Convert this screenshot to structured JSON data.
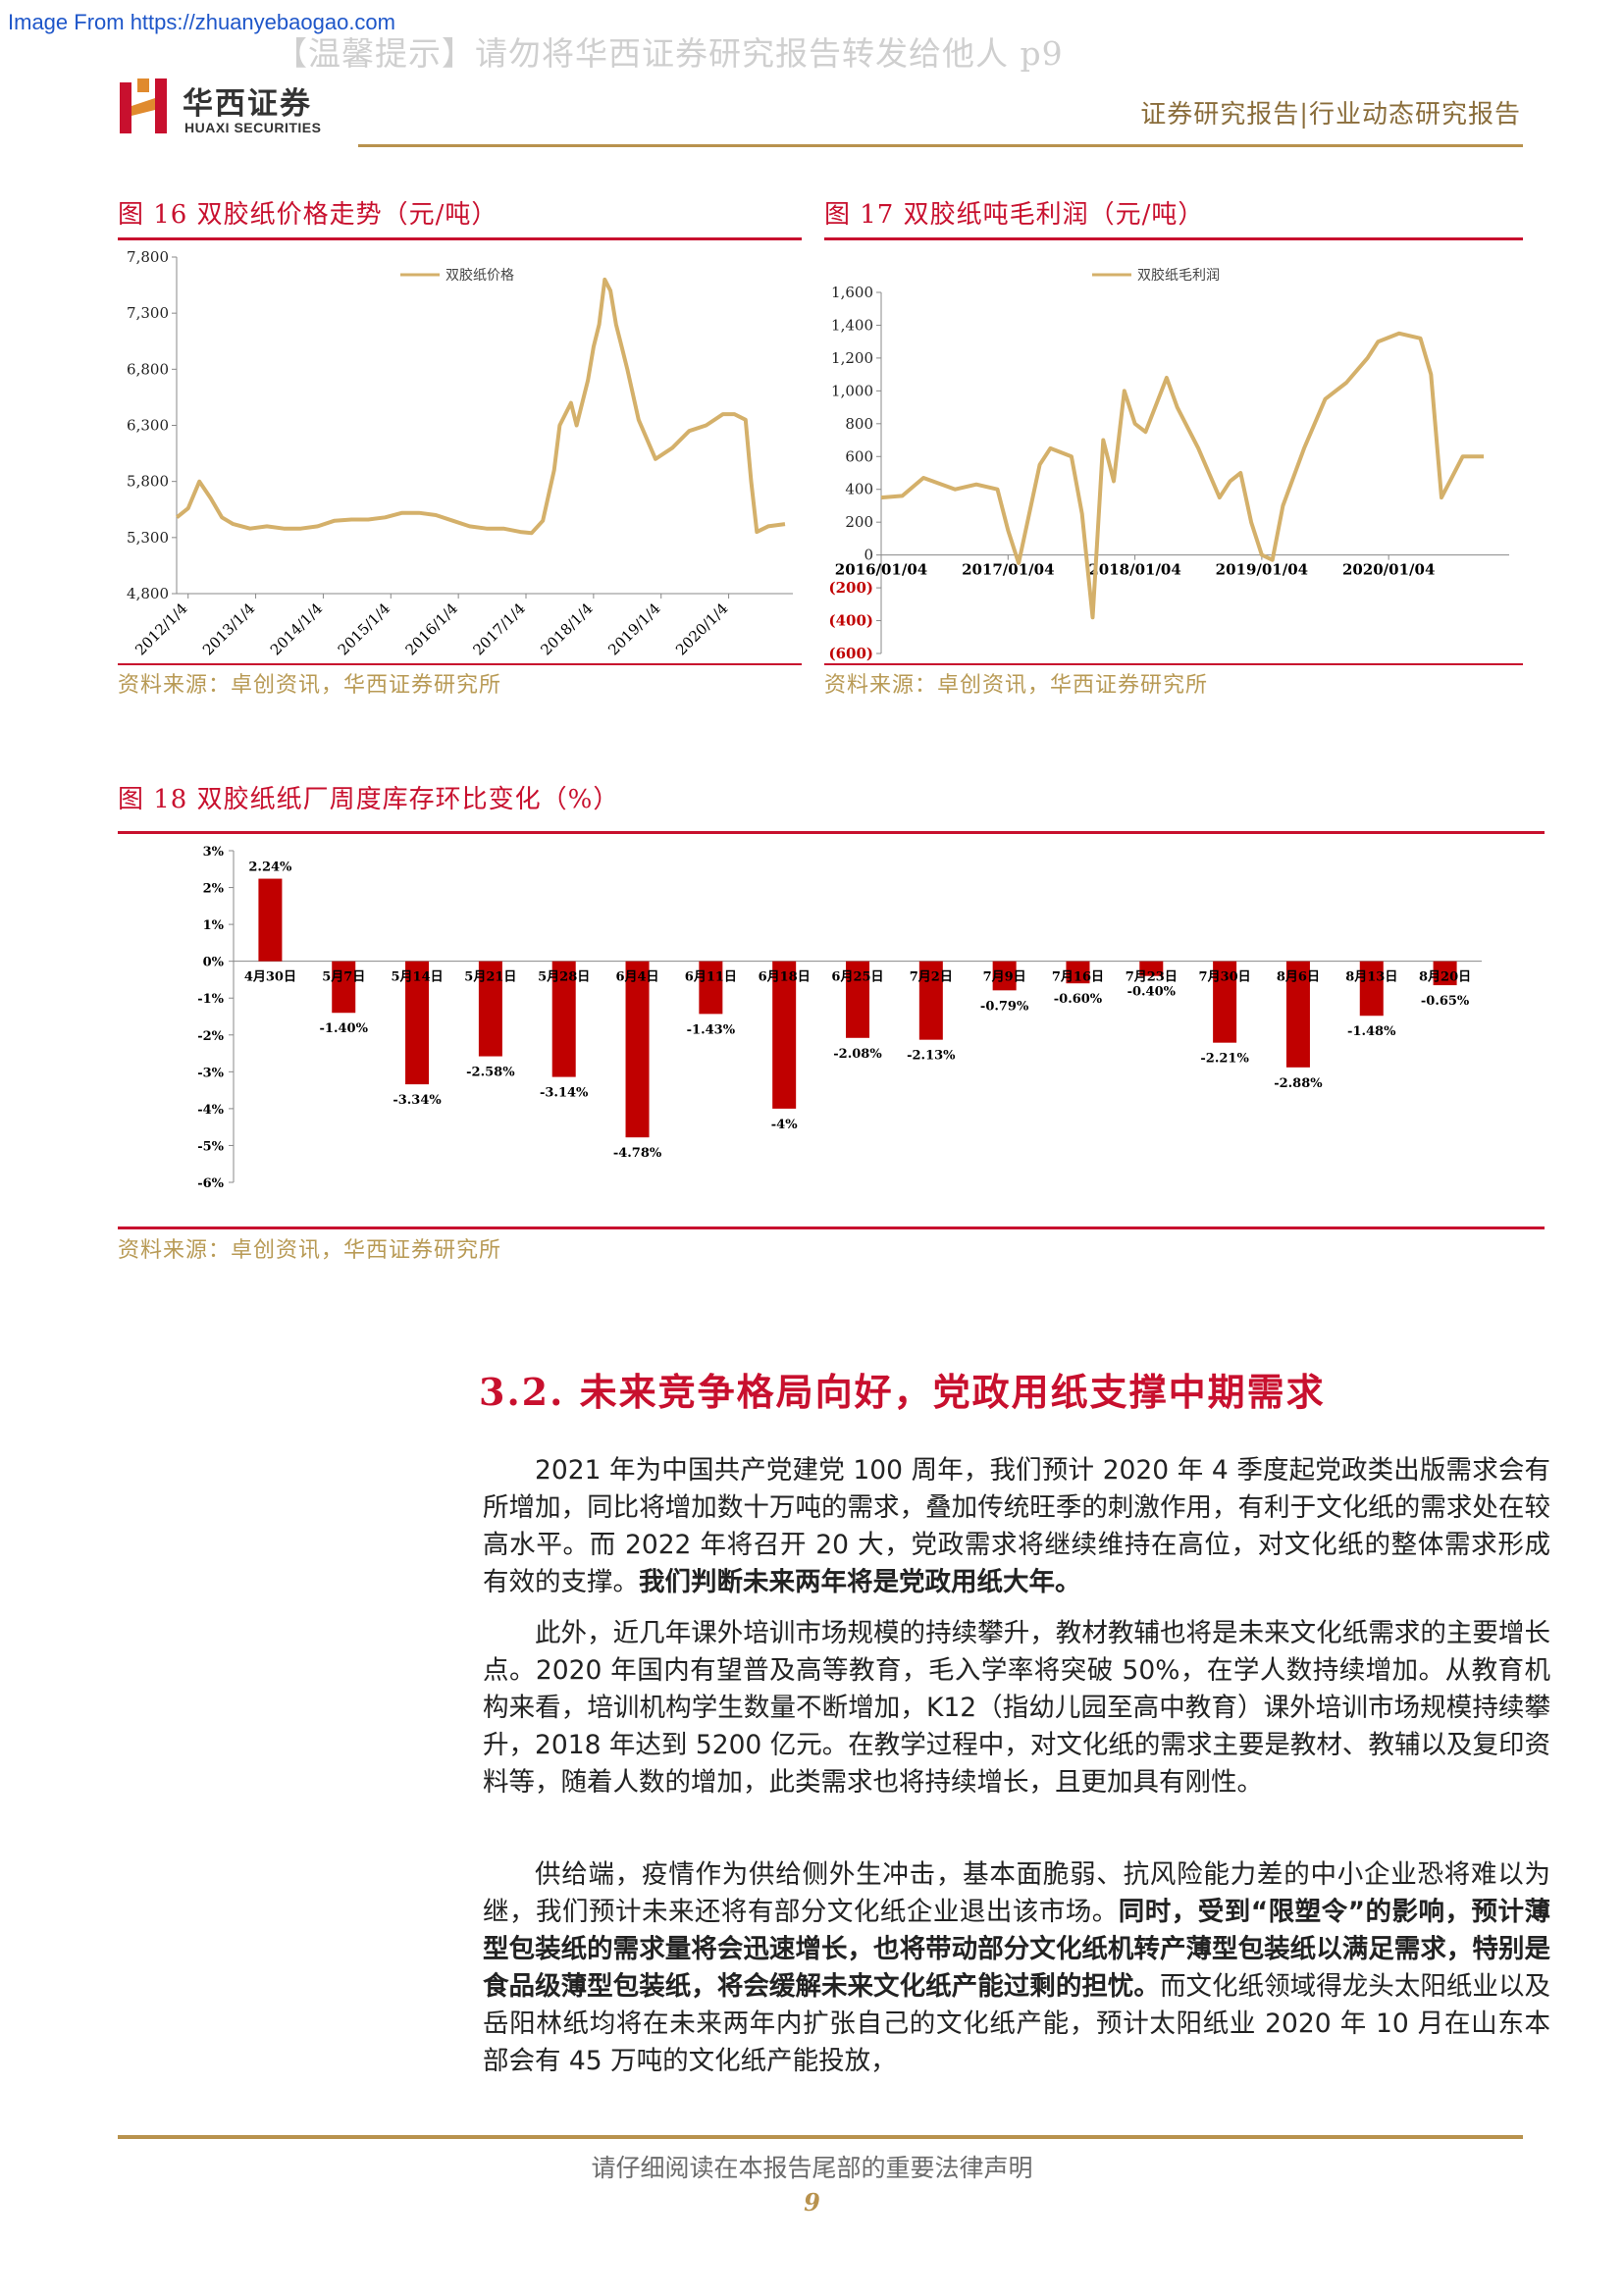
{
  "source_url": "Image From https://zhuanyebaogao.com",
  "warning": "【温馨提示】请勿将华西证券研究报告转发给他人 p9",
  "logo": {
    "cn": "华西证券",
    "en": "HUAXI SECURITIES",
    "mark": "H"
  },
  "report_type": "证券研究报告|行业动态研究报告",
  "figures": {
    "fig16": {
      "title": "图 16    双胶纸价格走势（元/吨）",
      "source": "资料来源：卓创资讯，华西证券研究所"
    },
    "fig17": {
      "title": "图 17    双胶纸吨毛利润（元/吨）",
      "source": "资料来源：卓创资讯，华西证券研究所"
    },
    "fig18": {
      "title": "图 18    双胶纸纸厂周度库存环比变化（%）",
      "source": "资料来源：卓创资讯，华西证券研究所"
    }
  },
  "chart_data": [
    {
      "id": "fig16",
      "type": "line",
      "series": [
        {
          "name": "双胶纸价格",
          "color": "#d4b06a",
          "x": [
            "2011/11",
            "2012/1",
            "2012/3",
            "2012/5",
            "2012/7",
            "2012/9",
            "2012/12",
            "2013/3",
            "2013/6",
            "2013/9",
            "2013/12",
            "2014/3",
            "2014/6",
            "2014/9",
            "2014/12",
            "2015/3",
            "2015/6",
            "2015/9",
            "2015/12",
            "2016/3",
            "2016/6",
            "2016/9",
            "2016/12",
            "2017/2",
            "2017/4",
            "2017/6",
            "2017/7",
            "2017/9",
            "2017/10",
            "2017/12",
            "2018/1",
            "2018/2",
            "2018/3",
            "2018/4",
            "2018/5",
            "2018/6",
            "2018/7",
            "2018/9",
            "2018/12",
            "2019/3",
            "2019/6",
            "2019/9",
            "2019/12",
            "2020/2",
            "2020/4",
            "2020/5",
            "2020/6",
            "2020/8",
            "2020/11"
          ],
          "values": [
            5480,
            5560,
            5800,
            5650,
            5480,
            5420,
            5380,
            5400,
            5380,
            5380,
            5400,
            5450,
            5460,
            5460,
            5480,
            5520,
            5520,
            5500,
            5450,
            5400,
            5380,
            5380,
            5350,
            5340,
            5450,
            5900,
            6300,
            6500,
            6300,
            6700,
            7000,
            7200,
            7600,
            7500,
            7200,
            7000,
            6800,
            6350,
            6000,
            6100,
            6250,
            6300,
            6400,
            6400,
            6350,
            5800,
            5350,
            5400,
            5420
          ]
        }
      ],
      "yticks": [
        "7,800",
        "7,300",
        "6,800",
        "6,300",
        "5,800",
        "5,300",
        "4,800"
      ],
      "ylim": [
        4800,
        7800
      ],
      "xticks": [
        "2012/1/4",
        "2013/1/4",
        "2014/1/4",
        "2015/1/4",
        "2016/1/4",
        "2017/1/4",
        "2018/1/4",
        "2019/1/4",
        "2020/1/4"
      ],
      "legend": "top-center"
    },
    {
      "id": "fig17",
      "type": "line",
      "series": [
        {
          "name": "双胶纸毛利润",
          "color": "#d4b06a",
          "x": [
            "2016/01",
            "2016/03",
            "2016/05",
            "2016/08",
            "2016/10",
            "2016/12",
            "2017/01",
            "2017/02",
            "2017/04",
            "2017/05",
            "2017/07",
            "2017/08",
            "2017/09",
            "2017/10",
            "2017/11",
            "2017/12",
            "2018/01",
            "2018/02",
            "2018/04",
            "2018/05",
            "2018/07",
            "2018/09",
            "2018/10",
            "2018/11",
            "2018/12",
            "2019/01",
            "2019/02",
            "2019/03",
            "2019/05",
            "2019/07",
            "2019/09",
            "2019/11",
            "2019/12",
            "2020/02",
            "2020/04",
            "2020/05",
            "2020/06",
            "2020/08",
            "2020/10"
          ],
          "values": [
            350,
            360,
            470,
            400,
            430,
            400,
            150,
            -50,
            550,
            650,
            600,
            250,
            -380,
            700,
            450,
            1000,
            800,
            750,
            1080,
            900,
            650,
            350,
            450,
            500,
            200,
            0,
            -30,
            300,
            650,
            950,
            1050,
            1200,
            1300,
            1350,
            1320,
            1100,
            350,
            600,
            600
          ]
        }
      ],
      "yticks": [
        "1,600",
        "1,400",
        "1,200",
        "1,000",
        "800",
        "600",
        "400",
        "200",
        "0",
        "(200)",
        "(400)",
        "(600)"
      ],
      "ylim": [
        -600,
        1600
      ],
      "xticks": [
        "2016/01/04",
        "2017/01/04",
        "2018/01/04",
        "2019/01/04",
        "2020/01/04"
      ],
      "legend": "top-center"
    },
    {
      "id": "fig18",
      "type": "bar",
      "categories": [
        "4月30日",
        "5月7日",
        "5月14日",
        "5月21日",
        "5月28日",
        "6月4日",
        "6月11日",
        "6月18日",
        "6月25日",
        "7月2日",
        "7月9日",
        "7月16日",
        "7月23日",
        "7月30日",
        "8月6日",
        "8月13日",
        "8月20日"
      ],
      "values": [
        2.24,
        -1.4,
        -3.34,
        -2.58,
        -3.14,
        -4.78,
        -1.43,
        -4.0,
        -2.08,
        -2.13,
        -0.79,
        -0.6,
        -0.4,
        -2.21,
        -2.88,
        -1.48,
        -0.65
      ],
      "value_labels": [
        "2.24%",
        "-1.40%",
        "-3.34%",
        "-2.58%",
        "-3.14%",
        "-4.78%",
        "-1.43%",
        "-4%",
        "-2.08%",
        "-2.13%",
        "-0.79%",
        "-0.60%",
        "-0.40%",
        "-2.21%",
        "-2.88%",
        "-1.48%",
        "-0.65%"
      ],
      "yticks": [
        "3%",
        "2%",
        "1%",
        "0%",
        "-1%",
        "-2%",
        "-3%",
        "-4%",
        "-5%",
        "-6%"
      ],
      "ylim": [
        -6,
        3
      ],
      "bar_color": "#c00000"
    }
  ],
  "section": {
    "heading": "3.2. 未来竞争格局向好，党政用纸支撑中期需求"
  },
  "paragraphs": [
    {
      "plain": "2021 年为中国共产党建党 100 周年，我们预计 2020 年 4 季度起党政类出版需求会有所增加，同比将增加数十万吨的需求，叠加传统旺季的刺激作用，有利于文化纸的需求处在较高水平。而 2022 年将召开 20 大，党政需求将继续维持在高位，对文化纸的整体需求形成有效的支撑。",
      "bold": "我们判断未来两年将是党政用纸大年。"
    },
    {
      "plain": "此外，近几年课外培训市场规模的持续攀升，教材教辅也将是未来文化纸需求的主要增长点。2020 年国内有望普及高等教育，毛入学率将突破 50%，在学人数持续增加。从教育机构来看，培训机构学生数量不断增加，K12（指幼儿园至高中教育）课外培训市场规模持续攀升，2018 年达到 5200 亿元。在教学过程中，对文化纸的需求主要是教材、教辅以及复印资料等，随着人数的增加，此类需求也将持续增长，且更加具有刚性。"
    },
    {
      "plain": "供给端，疫情作为供给侧外生冲击，基本面脆弱、抗风险能力差的中小企业恐将难以为继，我们预计未来还将有部分文化纸企业退出该市场。",
      "bold": "同时，受到“限塑令”的影响，预计薄型包装纸的需求量将会迅速增长，也将带动部分文化纸机转产薄型包装纸以满足需求，特别是食品级薄型包装纸，将会缓解未来文化纸产能过剩的担忧。",
      "tail": "而文化纸领域得龙头太阳纸业以及岳阳林纸均将在未来两年内扩张自己的文化纸产能，预计太阳纸业 2020 年 10 月在山东本部会有 45 万吨的文化纸产能投放，"
    }
  ],
  "footer": {
    "disclaimer": "请仔细阅读在本报告尾部的重要法律声明",
    "page": "9"
  },
  "colors": {
    "accent_red": "#c8102e",
    "gold": "#b8924d",
    "line_gold": "#d4b06a",
    "bar_red": "#c00000"
  }
}
